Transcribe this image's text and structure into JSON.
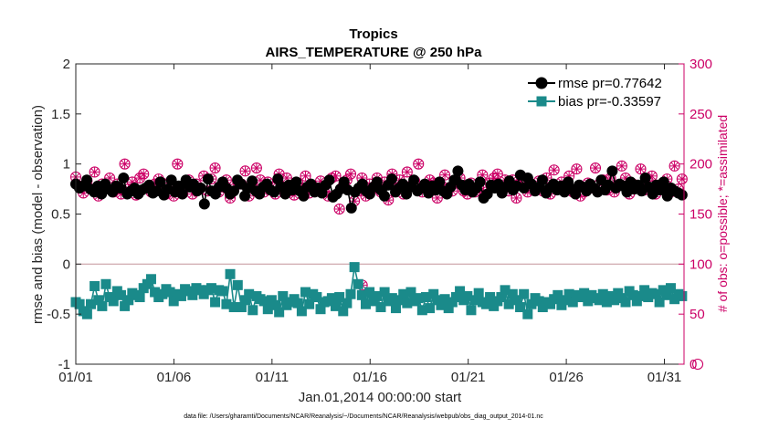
{
  "chart_data": {
    "type": "line",
    "title": "Tropics",
    "subtitle": "AIRS_TEMPERATURE @ 250 hPa",
    "xlabel": "Jan.01,2014 00:00:00 start",
    "ylabel": "rmse and bias (model - observation)",
    "y2label": "# of obs: o=possible; *=assimilated",
    "xlim": [
      0,
      31
    ],
    "ylim": [
      -1,
      2
    ],
    "y2lim": [
      0,
      300
    ],
    "x_ticks": [
      0,
      5,
      10,
      15,
      20,
      25,
      30
    ],
    "x_tick_labels": [
      "01/01",
      "01/06",
      "01/11",
      "01/16",
      "01/21",
      "01/26",
      "01/31"
    ],
    "y_ticks": [
      -1,
      -0.5,
      0,
      0.5,
      1,
      1.5,
      2
    ],
    "y_tick_labels": [
      "-1",
      "-0.5",
      "0",
      "0.5",
      "1",
      "1.5",
      "2"
    ],
    "y2_ticks": [
      0,
      50,
      100,
      150,
      200,
      250,
      300
    ],
    "y2_tick_labels": [
      "0",
      "50",
      "100",
      "150",
      "200",
      "250",
      "300"
    ],
    "grid": false,
    "legend_position": "top-right",
    "legend": [
      "rmse pr=0.77642",
      "bias pr=-0.33597"
    ],
    "series": [
      {
        "name": "rmse pr=0.77642",
        "color": "#000000",
        "marker": "circle",
        "axis": "left",
        "values": [
          0.8,
          0.76,
          0.78,
          0.84,
          0.75,
          0.72,
          0.78,
          0.7,
          0.8,
          0.75,
          0.72,
          0.78,
          0.76,
          0.86,
          0.7,
          0.73,
          0.76,
          0.7,
          0.74,
          0.76,
          0.79,
          0.71,
          0.73,
          0.82,
          0.69,
          0.75,
          0.84,
          0.72,
          0.78,
          0.7,
          0.84,
          0.77,
          0.8,
          0.73,
          0.76,
          0.6,
          0.85,
          0.73,
          0.7,
          0.77,
          0.82,
          0.76,
          0.7,
          0.73,
          0.84,
          0.8,
          0.68,
          0.76,
          0.83,
          0.73,
          0.7,
          0.77,
          0.8,
          0.74,
          0.72,
          0.85,
          0.77,
          0.7,
          0.79,
          0.74,
          0.82,
          0.73,
          0.68,
          0.77,
          0.8,
          0.72,
          0.76,
          0.71,
          0.79,
          0.84,
          0.67,
          0.7,
          0.75,
          0.82,
          0.74,
          0.56,
          0.72,
          0.76,
          0.8,
          0.73,
          0.7,
          0.77,
          0.82,
          0.74,
          0.68,
          0.79,
          0.85,
          0.72,
          0.76,
          0.8,
          0.7,
          0.77,
          0.84,
          0.73,
          0.76,
          0.8,
          0.71,
          0.78,
          0.74,
          0.82,
          0.73,
          0.7,
          0.77,
          0.84,
          0.93,
          0.79,
          0.74,
          0.8,
          0.72,
          0.76,
          0.82,
          0.66,
          0.7,
          0.79,
          0.76,
          0.8,
          0.71,
          0.77,
          0.83,
          0.74,
          0.78,
          0.89,
          0.76,
          0.86,
          0.8,
          0.73,
          0.77,
          0.84,
          0.71,
          0.76,
          0.8,
          0.74,
          0.78,
          0.72,
          0.82,
          0.75,
          0.7,
          0.79,
          0.77,
          0.73,
          0.8,
          0.76,
          0.72,
          0.84,
          0.74,
          0.79,
          0.93,
          0.76,
          0.8,
          0.78,
          0.72,
          0.82,
          0.75,
          0.79,
          0.73,
          0.86,
          0.77,
          0.7,
          0.79,
          0.74,
          0.82,
          0.68,
          0.76,
          0.73,
          0.71,
          0.69
        ]
      },
      {
        "name": "bias pr=-0.33597",
        "color": "#1a8a8a",
        "marker": "square",
        "axis": "left",
        "values": [
          -0.38,
          -0.4,
          -0.47,
          -0.5,
          -0.4,
          -0.22,
          -0.36,
          -0.42,
          -0.2,
          -0.33,
          -0.37,
          -0.27,
          -0.31,
          -0.42,
          -0.36,
          -0.29,
          -0.31,
          -0.33,
          -0.24,
          -0.2,
          -0.15,
          -0.28,
          -0.33,
          -0.3,
          -0.25,
          -0.28,
          -0.37,
          -0.3,
          -0.32,
          -0.25,
          -0.27,
          -0.31,
          -0.24,
          -0.26,
          -0.3,
          -0.26,
          -0.24,
          -0.38,
          -0.26,
          -0.27,
          -0.4,
          -0.1,
          -0.43,
          -0.21,
          -0.43,
          -0.36,
          -0.3,
          -0.46,
          -0.32,
          -0.35,
          -0.37,
          -0.45,
          -0.36,
          -0.41,
          -0.48,
          -0.32,
          -0.41,
          -0.38,
          -0.35,
          -0.39,
          -0.47,
          -0.28,
          -0.4,
          -0.3,
          -0.33,
          -0.45,
          -0.38,
          -0.37,
          -0.34,
          -0.42,
          -0.33,
          -0.47,
          -0.39,
          -0.3,
          -0.03,
          -0.2,
          -0.31,
          -0.4,
          -0.28,
          -0.37,
          -0.32,
          -0.43,
          -0.28,
          -0.37,
          -0.34,
          -0.44,
          -0.36,
          -0.3,
          -0.39,
          -0.28,
          -0.37,
          -0.34,
          -0.46,
          -0.33,
          -0.44,
          -0.3,
          -0.36,
          -0.41,
          -0.35,
          -0.44,
          -0.38,
          -0.33,
          -0.27,
          -0.36,
          -0.32,
          -0.46,
          -0.36,
          -0.29,
          -0.38,
          -0.4,
          -0.33,
          -0.42,
          -0.37,
          -0.33,
          -0.26,
          -0.4,
          -0.3,
          -0.36,
          -0.43,
          -0.3,
          -0.5,
          -0.4,
          -0.34,
          -0.37,
          -0.43,
          -0.38,
          -0.4,
          -0.35,
          -0.31,
          -0.41,
          -0.36,
          -0.3,
          -0.38,
          -0.31,
          -0.33,
          -0.29,
          -0.37,
          -0.31,
          -0.34,
          -0.36,
          -0.3,
          -0.38,
          -0.32,
          -0.36,
          -0.29,
          -0.34,
          -0.38,
          -0.27,
          -0.31,
          -0.37,
          -0.32,
          -0.26,
          -0.33,
          -0.29,
          -0.3,
          -0.38,
          -0.26,
          -0.31,
          -0.24,
          -0.35,
          -0.3,
          -0.32
        ]
      },
      {
        "name": "obs possible",
        "color": "#cc0066",
        "marker": "circle-open",
        "axis": "right",
        "values": [
          187,
          178,
          171,
          183,
          175,
          192,
          168,
          180,
          176,
          186,
          172,
          180,
          170,
          200,
          175,
          182,
          169,
          186,
          190,
          176,
          172,
          180,
          185,
          181,
          170,
          175,
          168,
          200,
          173,
          177,
          184,
          170,
          180,
          176,
          188,
          173,
          185,
          196,
          172,
          178,
          184,
          166,
          175,
          182,
          180,
          193,
          168,
          176,
          196,
          184,
          172,
          182,
          177,
          170,
          190,
          175,
          186,
          173,
          169,
          181,
          176,
          188,
          171,
          178,
          174,
          183,
          172,
          168,
          186,
          188,
          155,
          178,
          184,
          190,
          163,
          173,
          186,
          168,
          180,
          176,
          186,
          172,
          182,
          164,
          190,
          175,
          184,
          170,
          192,
          178,
          183,
          200,
          172,
          177,
          184,
          181,
          166,
          179,
          189,
          176,
          173,
          182,
          186,
          173,
          170,
          181,
          172,
          176,
          189,
          172,
          181,
          186,
          190,
          177,
          184,
          173,
          184,
          166,
          181,
          186,
          172,
          178,
          176,
          183,
          173,
          186,
          170,
          194,
          176,
          182,
          173,
          188,
          172,
          195,
          168,
          172,
          181,
          176,
          196,
          180,
          184,
          174,
          186,
          172,
          178,
          198,
          186,
          170,
          180,
          176,
          195,
          174,
          183,
          188,
          170,
          179,
          176,
          185,
          172,
          198,
          175,
          185
        ]
      },
      {
        "name": "obs assimilated",
        "color": "#cc0066",
        "marker": "asterisk",
        "axis": "right",
        "values": [
          187,
          178,
          171,
          183,
          175,
          192,
          168,
          180,
          176,
          186,
          172,
          180,
          170,
          200,
          175,
          182,
          169,
          186,
          190,
          176,
          172,
          180,
          185,
          181,
          170,
          175,
          168,
          200,
          173,
          177,
          184,
          170,
          180,
          176,
          188,
          173,
          185,
          196,
          172,
          178,
          184,
          166,
          175,
          182,
          180,
          193,
          168,
          176,
          196,
          184,
          172,
          182,
          177,
          170,
          190,
          175,
          186,
          173,
          169,
          181,
          176,
          188,
          171,
          178,
          174,
          183,
          172,
          168,
          186,
          188,
          155,
          178,
          184,
          190,
          163,
          173,
          186,
          168,
          180,
          176,
          186,
          172,
          182,
          164,
          190,
          175,
          184,
          170,
          192,
          178,
          183,
          200,
          172,
          177,
          184,
          181,
          166,
          179,
          189,
          176,
          173,
          182,
          186,
          173,
          170,
          181,
          172,
          176,
          189,
          172,
          181,
          186,
          190,
          177,
          184,
          173,
          184,
          166,
          181,
          186,
          172,
          178,
          176,
          183,
          173,
          186,
          170,
          194,
          176,
          182,
          173,
          188,
          172,
          195,
          168,
          172,
          181,
          176,
          196,
          180,
          184,
          174,
          186,
          172,
          178,
          198,
          186,
          170,
          180,
          176,
          195,
          174,
          183,
          188,
          170,
          179,
          176,
          185,
          172,
          198,
          175,
          185
        ]
      }
    ],
    "extra_points": [
      {
        "series": "obs possible",
        "x": 14.6,
        "y2": 79
      },
      {
        "series": "obs assimilated",
        "x": 14.6,
        "y2": 79
      },
      {
        "series": "obs possible",
        "x": 31.7,
        "y2": 0
      }
    ],
    "footnote": "data file: /Users/gharamti/Documents/NCAR/Reanalysis/~/Documents/NCAR/Reanalysis/webpub/obs_diag_output_2014-01.nc"
  }
}
